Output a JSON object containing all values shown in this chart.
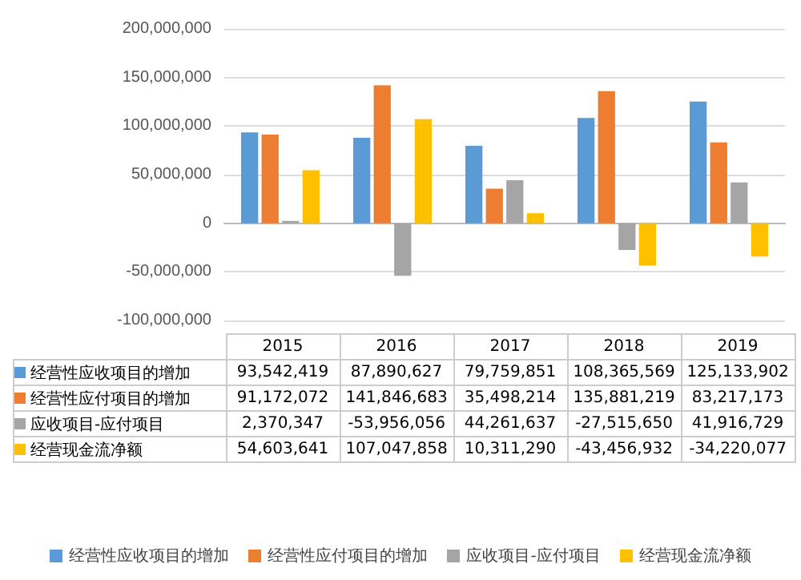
{
  "chart_data": {
    "type": "bar",
    "categories": [
      "2015",
      "2016",
      "2017",
      "2018",
      "2019"
    ],
    "series": [
      {
        "name": "经营性应收项目的增加",
        "color": "#5b9bd5",
        "values": [
          93542419,
          87890627,
          79759851,
          108365569,
          125133902
        ],
        "value_labels": [
          "93,542,419",
          "87,890,627",
          "79,759,851",
          "108,365,569",
          "125,133,902"
        ]
      },
      {
        "name": "经营性应付项目的增加",
        "color": "#ed7d31",
        "values": [
          91172072,
          141846683,
          35498214,
          135881219,
          83217173
        ],
        "value_labels": [
          "91,172,072",
          "141,846,683",
          "35,498,214",
          "135,881,219",
          "83,217,173"
        ]
      },
      {
        "name": "应收项目-应付项目",
        "color": "#a5a5a5",
        "values": [
          2370347,
          -53956056,
          44261637,
          -27515650,
          41916729
        ],
        "value_labels": [
          "2,370,347",
          "-53,956,056",
          "44,261,637",
          "-27,515,650",
          "41,916,729"
        ]
      },
      {
        "name": "经营现金流净额",
        "color": "#ffc000",
        "values": [
          54603641,
          107047858,
          10311290,
          -43456932,
          -34220077
        ],
        "value_labels": [
          "54,603,641",
          "107,047,858",
          "10,311,290",
          "-43,456,932",
          "-34,220,077"
        ]
      }
    ],
    "ylim": [
      -100000000,
      200000000
    ],
    "yticks": [
      {
        "value": -100000000,
        "label": "-100,000,000"
      },
      {
        "value": -50000000,
        "label": "-50,000,000"
      },
      0,
      {
        "value": 50000000,
        "label": "50,000,000"
      },
      {
        "value": 100000000,
        "label": "100,000,000"
      },
      {
        "value": 150000000,
        "label": "150,000,000"
      },
      {
        "value": 200000000,
        "label": "200,000,000"
      }
    ],
    "grid": "y",
    "legend": "bottom"
  }
}
